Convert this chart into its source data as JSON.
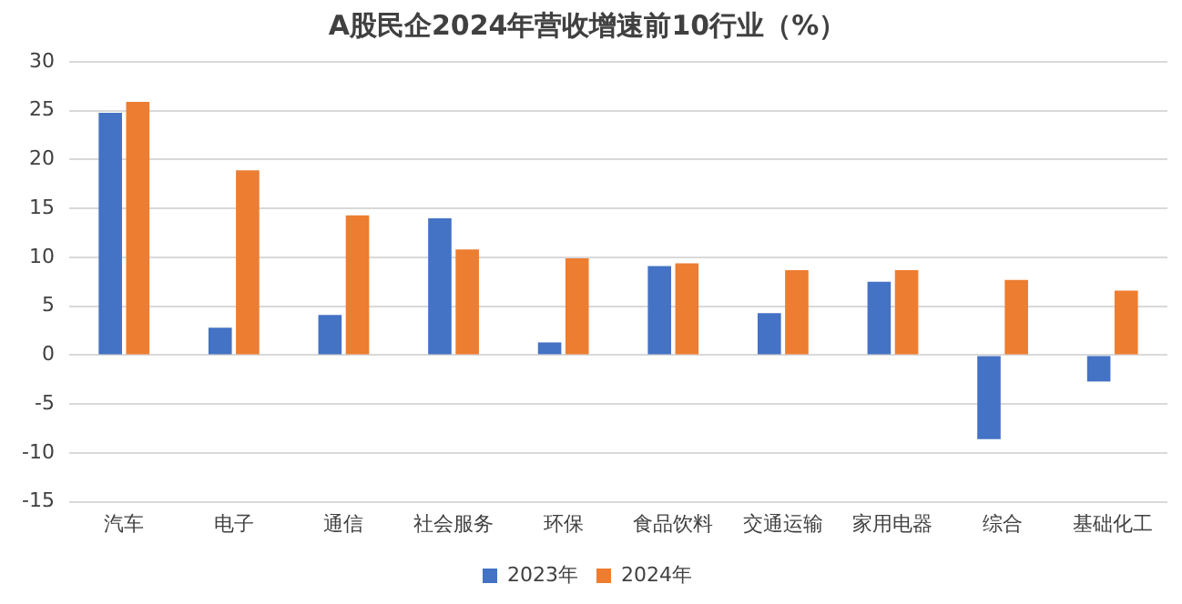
{
  "chart_data": {
    "type": "bar",
    "title": "A股民企2024年营收增速前10行业（%）",
    "categories": [
      "汽车",
      "电子",
      "通信",
      "社会服务",
      "环保",
      "食品饮料",
      "交通运输",
      "家用电器",
      "综合",
      "基础化工"
    ],
    "series": [
      {
        "name": "2023年",
        "color": "#4472c4",
        "values": [
          24.8,
          2.8,
          4.1,
          14.0,
          1.3,
          9.1,
          4.3,
          7.5,
          -8.6,
          -2.7
        ]
      },
      {
        "name": "2024年",
        "color": "#ed7d31",
        "values": [
          25.9,
          18.9,
          14.3,
          10.8,
          9.9,
          9.4,
          8.7,
          8.7,
          7.7,
          6.6
        ]
      }
    ],
    "ylim": [
      -15,
      30
    ],
    "yticks": [
      -15,
      -10,
      -5,
      0,
      5,
      10,
      15,
      20,
      25,
      30
    ],
    "grid": "y",
    "legend": "bottom"
  }
}
